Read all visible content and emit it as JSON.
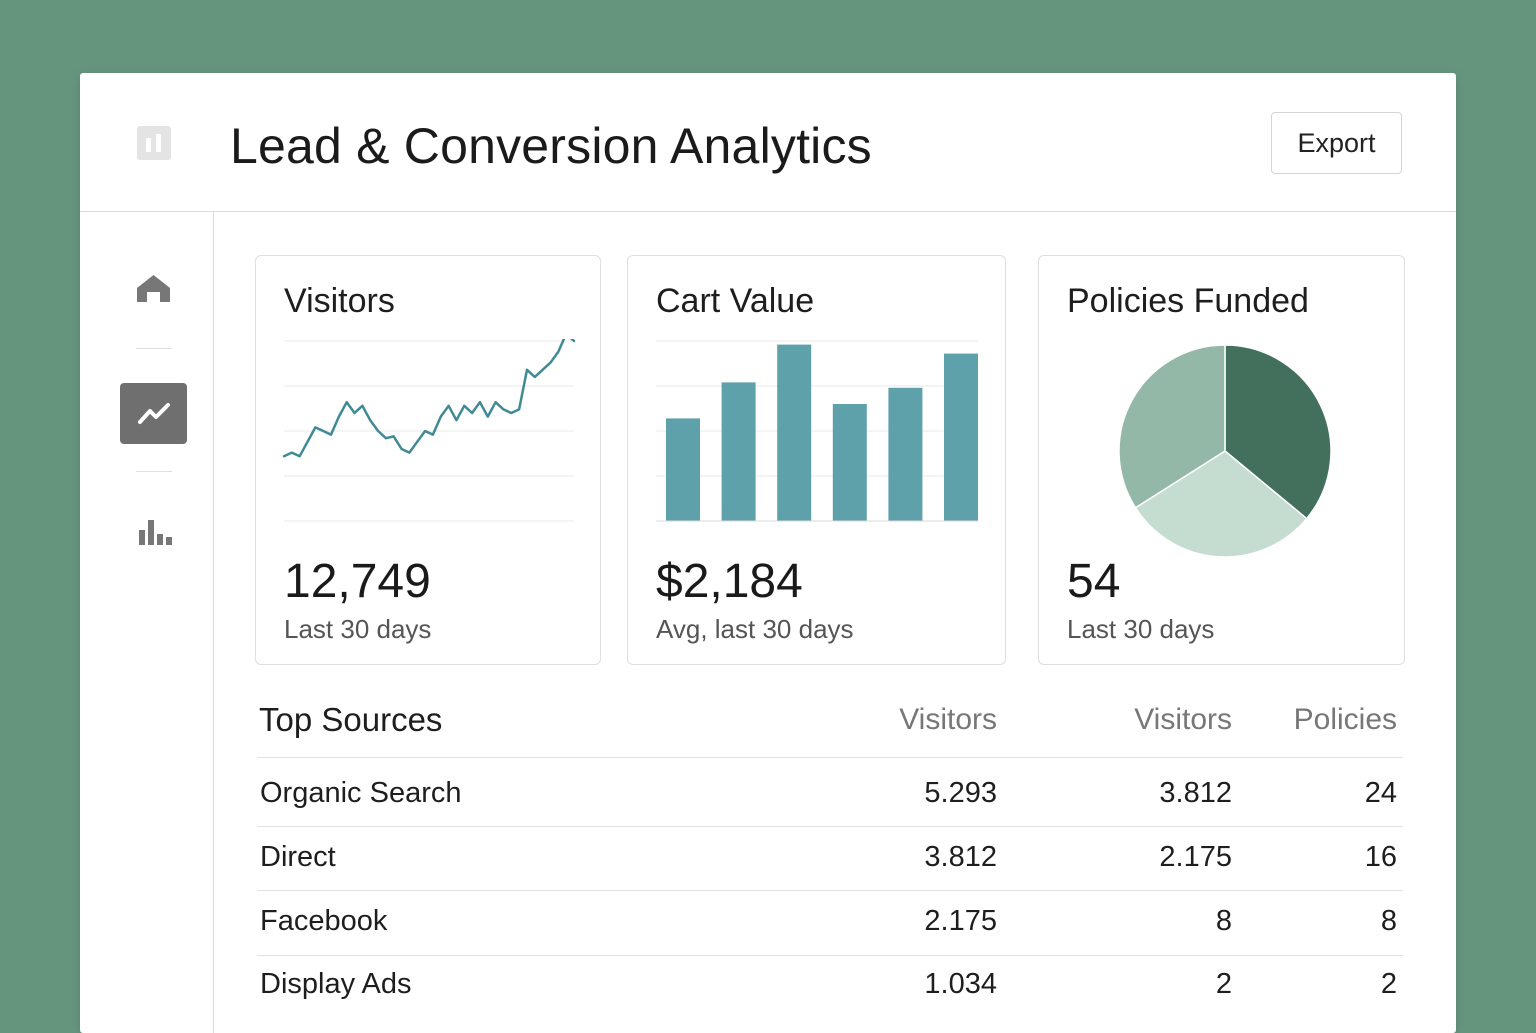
{
  "header": {
    "title": "Lead & Conversion Analytics",
    "export_label": "Export"
  },
  "sidebar": {
    "items": [
      {
        "icon": "home-icon",
        "active": false
      },
      {
        "icon": "trend-line-icon",
        "active": true
      },
      {
        "icon": "bar-chart-icon",
        "active": false
      }
    ]
  },
  "colors": {
    "background": "#66957d",
    "line": "#3f8a95",
    "bar": "#5fa1aa",
    "pie_dark": "#436f5d",
    "pie_mid": "#93b8a8",
    "pie_light": "#c5dcd1",
    "nav_active": "#6f6f6f"
  },
  "cards": {
    "visitors": {
      "title": "Visitors",
      "value": "12,749",
      "sub": "Last 30 days"
    },
    "cart": {
      "title": "Cart Value",
      "value": "$2,184",
      "sub": "Avg, last 30 days"
    },
    "policies": {
      "title": "Policies Funded",
      "value": "54",
      "sub": "Last 30 days"
    }
  },
  "chart_data": [
    {
      "type": "line",
      "title": "Visitors",
      "values": [
        36,
        38,
        36,
        44,
        52,
        50,
        48,
        58,
        66,
        60,
        64,
        56,
        50,
        46,
        47,
        40,
        38,
        44,
        50,
        48,
        58,
        64,
        56,
        64,
        60,
        66,
        58,
        66,
        62,
        60,
        62,
        84,
        80,
        84,
        88,
        94,
        104,
        100
      ],
      "ylim": [
        0,
        100
      ],
      "grid": true
    },
    {
      "type": "bar",
      "title": "Cart Value",
      "values": [
        57,
        77,
        98,
        65,
        74,
        93
      ],
      "ylim": [
        0,
        100
      ],
      "grid": true
    },
    {
      "type": "pie",
      "title": "Policies Funded",
      "values": [
        36,
        30,
        34
      ],
      "colors": [
        "#436f5d",
        "#c5dcd1",
        "#93b8a8"
      ]
    }
  ],
  "table": {
    "headers": [
      "Top Sources",
      "Visitors",
      "Visitors",
      "Policies"
    ],
    "rows": [
      [
        "Organic Search",
        "5.293",
        "3.812",
        "24"
      ],
      [
        "Direct",
        "3.812",
        "2.175",
        "16"
      ],
      [
        "Facebook",
        "2.175",
        "8",
        "8"
      ],
      [
        "Display Ads",
        "1.034",
        "2",
        "2"
      ]
    ]
  }
}
